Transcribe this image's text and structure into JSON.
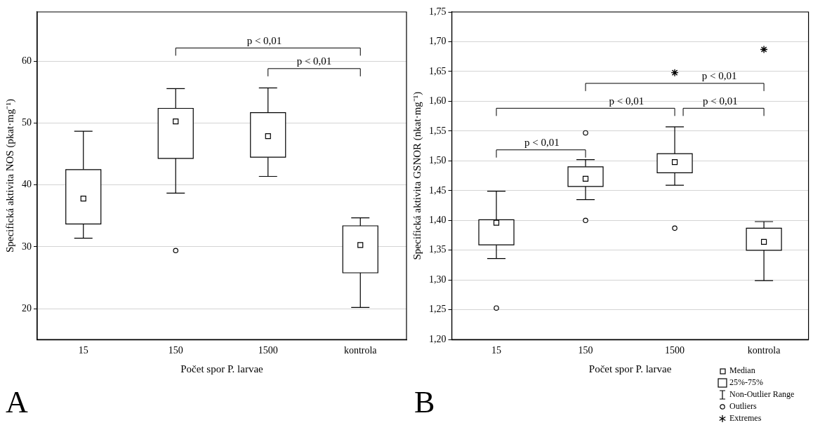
{
  "chart_data": [
    {
      "type": "box",
      "xlabel": "Počet spor P. larvae",
      "ylabel": "Specifická aktivita NOS (pkat·mg⁻¹)",
      "categories": [
        "15",
        "150",
        "1500",
        "kontrola"
      ],
      "ylim": [
        15,
        68
      ],
      "yticks": [
        20,
        30,
        40,
        50,
        60
      ],
      "grid": "y",
      "boxes": [
        {
          "low": 31.4,
          "q1": 33.7,
          "median": 37.8,
          "q3": 42.5,
          "high": 48.7
        },
        {
          "low": 38.7,
          "q1": 44.3,
          "median": 50.3,
          "q3": 52.4,
          "high": 55.6,
          "outliers": [
            29.4
          ]
        },
        {
          "low": 41.4,
          "q1": 44.5,
          "median": 47.9,
          "q3": 51.7,
          "high": 55.7
        },
        {
          "low": 20.2,
          "q1": 25.8,
          "median": 30.3,
          "q3": 33.4,
          "high": 34.7
        }
      ],
      "annotations": [
        "p < 0,01",
        "p < 0,01",
        "A"
      ]
    },
    {
      "type": "box",
      "xlabel": "Počet spor P. larvae",
      "ylabel": "Specifická aktivita GSNOR (nkat·mg⁻¹)",
      "categories": [
        "15",
        "150",
        "1500",
        "kontrola"
      ],
      "ylim": [
        1.2,
        1.75
      ],
      "yticks": [
        {
          "value": 1.2,
          "label": "1,20"
        },
        {
          "value": 1.25,
          "label": "1,25"
        },
        {
          "value": 1.3,
          "label": "1,30"
        },
        {
          "value": 1.35,
          "label": "1,35"
        },
        {
          "value": 1.4,
          "label": "1,40"
        },
        {
          "value": 1.45,
          "label": "1,45"
        },
        {
          "value": 1.5,
          "label": "1,50"
        },
        {
          "value": 1.55,
          "label": "1,55"
        },
        {
          "value": 1.6,
          "label": "1,60"
        },
        {
          "value": 1.65,
          "label": "1,65"
        },
        {
          "value": 1.7,
          "label": "1,70"
        },
        {
          "value": 1.75,
          "label": "1,75"
        }
      ],
      "grid": "y",
      "legend": "bottom right",
      "boxes": [
        {
          "low": 1.336,
          "q1": 1.359,
          "median": 1.396,
          "q3": 1.401,
          "high": 1.449,
          "outliers": [
            1.253
          ]
        },
        {
          "low": 1.435,
          "q1": 1.457,
          "median": 1.47,
          "q3": 1.49,
          "high": 1.502,
          "outliers": [
            1.547,
            1.4
          ]
        },
        {
          "low": 1.459,
          "q1": 1.48,
          "median": 1.498,
          "q3": 1.512,
          "high": 1.557,
          "outliers": [
            1.387
          ]
        },
        {
          "low": 1.299,
          "q1": 1.35,
          "median": 1.364,
          "q3": 1.387,
          "high": 1.398
        }
      ],
      "series": [
        {
          "type": "scatter",
          "name": "Extremes",
          "values": [
            null,
            null,
            1.648,
            1.687
          ],
          "marker": "cross",
          "color": "#000000"
        }
      ],
      "annotations": [
        "p < 0,01",
        "p < 0,01",
        "p < 0,01",
        "p < 0,01",
        "B",
        "Median",
        "25%-75%",
        "Non-Outlier Range",
        "Outliers"
      ]
    }
  ]
}
